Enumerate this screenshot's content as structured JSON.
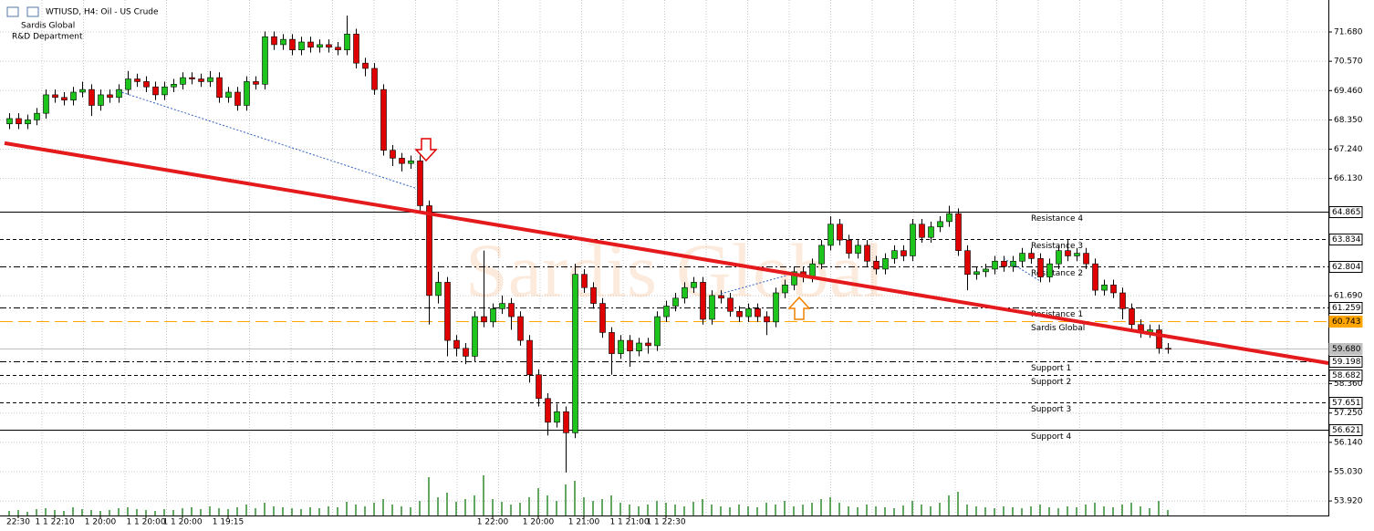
{
  "chart_data": {
    "type": "candlestick",
    "title": "WTIUSD, H4:  Oil - US Crude",
    "subtitle": [
      "Sardis Global",
      "R&D Department"
    ],
    "watermark": "Sardis Global",
    "ylim": [
      53.37,
      72.89
    ],
    "yticks": [
      {
        "value": 71.68,
        "label": "71.680"
      },
      {
        "value": 70.57,
        "label": "70.570"
      },
      {
        "value": 69.46,
        "label": "69.460"
      },
      {
        "value": 68.35,
        "label": "68.350"
      },
      {
        "value": 67.24,
        "label": "67.240"
      },
      {
        "value": 66.13,
        "label": "66.130"
      },
      {
        "value": 61.69,
        "label": "61.690"
      },
      {
        "value": 58.36,
        "label": "58.360"
      },
      {
        "value": 57.25,
        "label": "57.250"
      },
      {
        "value": 56.14,
        "label": "56.140"
      },
      {
        "value": 55.03,
        "label": "55.030"
      },
      {
        "value": 53.92,
        "label": "53.920"
      }
    ],
    "grid": true,
    "up_color": "#1cc41c",
    "down_color": "#e00000",
    "volume_color": "#2e8b2e",
    "vlim": [
      0,
      60
    ],
    "categories": [
      null,
      "22:30",
      null,
      null,
      null,
      "1 1 22:10",
      null,
      null,
      null,
      null,
      "1 20:00",
      null,
      null,
      null,
      null,
      "1 1 20:00",
      null,
      null,
      null,
      "1 1 20:00",
      null,
      null,
      null,
      null,
      "1 19:15",
      null,
      null,
      null,
      null,
      null,
      null,
      null,
      null,
      null,
      null,
      null,
      null,
      null,
      null,
      null,
      null,
      null,
      null,
      null,
      null,
      null,
      null,
      null,
      null,
      null,
      null,
      null,
      null,
      "1 22:00",
      null,
      null,
      null,
      null,
      "1 20:00",
      null,
      null,
      null,
      null,
      "1 21:00",
      null,
      null,
      null,
      null,
      "1 1 21:00",
      null,
      null,
      null,
      "1 1 22:30",
      null,
      null,
      null,
      null,
      null,
      null,
      null,
      null,
      null,
      null,
      null,
      null,
      null,
      null,
      null,
      null,
      null,
      null,
      null,
      null,
      null,
      null,
      null,
      null,
      null,
      null,
      null,
      null,
      null,
      null,
      null,
      null,
      null,
      null,
      null,
      null,
      null,
      null,
      null,
      null,
      null,
      null,
      null,
      null,
      null,
      null,
      null,
      null,
      null,
      null,
      null,
      null,
      null,
      null,
      null
    ],
    "open": [
      68.2,
      68.4,
      68.2,
      68.35,
      68.6,
      69.3,
      69.2,
      69.1,
      69.4,
      69.5,
      68.9,
      69.3,
      69.2,
      69.5,
      69.9,
      69.8,
      69.6,
      69.3,
      69.6,
      69.7,
      69.95,
      69.9,
      69.8,
      69.95,
      69.2,
      69.4,
      68.9,
      69.8,
      69.7,
      71.5,
      71.2,
      71.4,
      71.0,
      71.3,
      71.1,
      71.2,
      71.1,
      71.0,
      71.6,
      70.5,
      70.3,
      69.5,
      67.2,
      66.9,
      66.7,
      66.8,
      65.1,
      61.7,
      62.2,
      60.0,
      59.7,
      59.4,
      60.9,
      60.7,
      61.2,
      61.4,
      60.9,
      60.0,
      58.7,
      57.8,
      56.9,
      57.3,
      56.5,
      62.5,
      62.0,
      61.4,
      60.3,
      59.5,
      60.0,
      59.6,
      59.9,
      59.8,
      60.9,
      61.3,
      61.6,
      62.0,
      62.2,
      60.8,
      61.7,
      61.6,
      61.1,
      60.9,
      61.2,
      60.9,
      60.7,
      61.8,
      62.1,
      62.6,
      62.4,
      62.9,
      63.6,
      64.4,
      63.8,
      63.3,
      63.6,
      63.0,
      62.7,
      63.1,
      63.4,
      63.2,
      64.4,
      63.9,
      64.3,
      64.5,
      64.8,
      63.4,
      62.5,
      62.6,
      62.7,
      63.0,
      62.8,
      63.0,
      63.3,
      63.1,
      62.4,
      62.9,
      63.4,
      63.2,
      63.3,
      62.9,
      61.9,
      62.1,
      61.8,
      61.2,
      60.6,
      60.3,
      60.4,
      59.7
    ],
    "high": [
      68.6,
      68.6,
      68.55,
      68.8,
      69.5,
      69.5,
      69.4,
      69.6,
      69.8,
      69.7,
      69.5,
      69.5,
      69.7,
      70.2,
      70.1,
      70.0,
      69.8,
      69.8,
      69.9,
      70.15,
      70.15,
      70.1,
      70.2,
      70.15,
      69.6,
      69.6,
      70.0,
      70.0,
      71.7,
      71.7,
      71.6,
      71.6,
      71.5,
      71.5,
      71.4,
      71.4,
      71.3,
      72.3,
      71.8,
      70.7,
      70.5,
      69.7,
      67.4,
      67.1,
      67.0,
      67.0,
      65.3,
      62.6,
      62.4,
      60.2,
      59.9,
      61.1,
      63.4,
      61.4,
      61.7,
      61.6,
      61.1,
      60.2,
      58.9,
      58.0,
      57.6,
      57.5,
      62.9,
      62.7,
      62.2,
      61.6,
      60.5,
      60.2,
      60.2,
      60.1,
      60.1,
      61.1,
      61.5,
      61.8,
      62.2,
      62.4,
      62.4,
      61.9,
      61.9,
      61.8,
      61.3,
      61.4,
      61.4,
      61.1,
      62.0,
      62.3,
      62.8,
      62.8,
      63.1,
      63.8,
      64.7,
      64.6,
      64.0,
      63.8,
      63.8,
      63.2,
      63.3,
      63.6,
      63.6,
      64.6,
      64.6,
      64.5,
      64.7,
      65.1,
      65.0,
      63.6,
      62.8,
      62.9,
      63.2,
      63.2,
      63.2,
      63.5,
      63.5,
      63.3,
      63.1,
      63.6,
      63.8,
      63.5,
      63.5,
      63.1,
      62.3,
      62.3,
      62.0,
      61.4,
      60.8,
      60.6,
      60.6,
      59.9
    ],
    "low": [
      68.0,
      68.0,
      68.0,
      68.15,
      68.4,
      69.0,
      68.9,
      68.9,
      69.2,
      68.5,
      68.7,
      69.0,
      69.0,
      69.3,
      69.6,
      69.4,
      69.1,
      69.1,
      69.4,
      69.5,
      69.7,
      69.6,
      69.6,
      69.0,
      69.0,
      68.7,
      68.7,
      69.5,
      69.5,
      71.0,
      71.0,
      70.8,
      70.8,
      70.9,
      70.9,
      70.9,
      70.8,
      70.8,
      70.3,
      70.0,
      69.3,
      67.0,
      66.6,
      66.4,
      66.5,
      64.9,
      60.6,
      61.4,
      59.4,
      59.4,
      59.1,
      59.2,
      60.5,
      60.5,
      61.0,
      60.4,
      59.8,
      58.4,
      57.5,
      56.4,
      56.7,
      55.0,
      56.3,
      61.8,
      61.2,
      60.1,
      58.7,
      59.3,
      59.0,
      59.4,
      59.5,
      59.6,
      60.7,
      61.1,
      61.4,
      61.8,
      60.6,
      60.6,
      61.4,
      60.9,
      60.7,
      60.7,
      60.7,
      60.2,
      60.5,
      61.6,
      61.9,
      62.2,
      62.2,
      62.7,
      63.4,
      63.6,
      63.1,
      63.1,
      62.8,
      62.5,
      62.5,
      62.9,
      63.0,
      63.0,
      63.7,
      63.7,
      64.1,
      64.3,
      63.2,
      61.9,
      62.3,
      62.4,
      62.5,
      62.6,
      62.6,
      62.8,
      62.9,
      62.2,
      62.2,
      62.7,
      63.0,
      63.0,
      62.7,
      61.7,
      61.7,
      61.6,
      60.8,
      60.4,
      60.1,
      60.1,
      59.5,
      59.5
    ],
    "close": [
      68.4,
      68.2,
      68.35,
      68.6,
      69.3,
      69.2,
      69.1,
      69.4,
      69.5,
      68.9,
      69.3,
      69.2,
      69.5,
      69.9,
      69.8,
      69.6,
      69.3,
      69.6,
      69.7,
      69.95,
      69.9,
      69.8,
      69.95,
      69.2,
      69.4,
      68.9,
      69.8,
      69.7,
      71.5,
      71.2,
      71.4,
      71.0,
      71.3,
      71.1,
      71.2,
      71.1,
      71.0,
      71.6,
      70.5,
      70.3,
      69.5,
      67.2,
      66.9,
      66.7,
      66.8,
      65.1,
      61.7,
      62.2,
      60.0,
      59.7,
      59.4,
      60.9,
      60.7,
      61.2,
      61.4,
      60.9,
      60.0,
      58.7,
      57.8,
      56.9,
      57.3,
      56.5,
      62.5,
      62.0,
      61.4,
      60.3,
      59.5,
      60.0,
      59.6,
      59.9,
      59.8,
      60.9,
      61.3,
      61.6,
      62.0,
      62.2,
      60.8,
      61.7,
      61.6,
      61.1,
      60.9,
      61.2,
      60.9,
      60.7,
      61.8,
      62.1,
      62.6,
      62.4,
      62.9,
      63.6,
      64.4,
      63.8,
      63.3,
      63.6,
      63.0,
      62.7,
      63.1,
      63.4,
      63.2,
      64.4,
      63.9,
      64.3,
      64.5,
      64.8,
      63.4,
      62.5,
      62.6,
      62.7,
      63.0,
      62.8,
      63.0,
      63.3,
      63.1,
      62.4,
      62.9,
      63.4,
      63.2,
      63.3,
      62.9,
      61.9,
      62.1,
      61.8,
      61.2,
      60.6,
      60.3,
      60.4,
      59.7,
      59.68
    ],
    "volume": [
      5,
      6,
      4,
      7,
      8,
      6,
      5,
      9,
      7,
      6,
      5,
      6,
      8,
      9,
      7,
      6,
      5,
      7,
      6,
      8,
      9,
      7,
      10,
      8,
      7,
      9,
      12,
      8,
      14,
      10,
      9,
      8,
      7,
      9,
      8,
      10,
      9,
      15,
      12,
      10,
      14,
      18,
      12,
      10,
      9,
      16,
      42,
      20,
      25,
      15,
      18,
      22,
      44,
      18,
      15,
      12,
      14,
      20,
      30,
      22,
      16,
      34,
      38,
      20,
      16,
      18,
      22,
      14,
      12,
      10,
      12,
      16,
      14,
      12,
      10,
      15,
      18,
      12,
      10,
      9,
      12,
      10,
      9,
      14,
      12,
      16,
      10,
      12,
      14,
      18,
      20,
      14,
      10,
      9,
      12,
      10,
      9,
      8,
      11,
      16,
      12,
      10,
      14,
      22,
      26,
      12,
      10,
      9,
      8,
      10,
      9,
      8,
      10,
      12,
      9,
      8,
      10,
      9,
      12,
      14,
      10,
      9,
      12,
      14,
      10,
      8,
      16,
      6
    ],
    "levels": [
      {
        "name": "Resistance 4",
        "value": 64.865,
        "style": "solid",
        "color": "#000000"
      },
      {
        "name": "Resistance 3",
        "value": 63.834,
        "style": "dash",
        "color": "#000000"
      },
      {
        "name": "Resistance 2",
        "value": 62.804,
        "style": "dashdot",
        "color": "#000000"
      },
      {
        "name": "Resistance 1",
        "value": 61.259,
        "style": "dashdot",
        "color": "#000000"
      },
      {
        "name": "Sardis Global",
        "value": 60.743,
        "style": "longdash",
        "color": "#ffa500"
      },
      {
        "value": 59.68,
        "label": "59.680",
        "style": "solid",
        "color": "#c0c0c0"
      },
      {
        "name": "Support 1",
        "value": 59.198,
        "style": "dashdot",
        "color": "#000000"
      },
      {
        "name": "Support 2",
        "value": 58.682,
        "style": "dash",
        "color": "#000000"
      },
      {
        "name": "Support 3",
        "value": 57.651,
        "style": "dash",
        "color": "#000000"
      },
      {
        "name": "Support 4",
        "value": 56.621,
        "style": "solid",
        "color": "#000000"
      }
    ],
    "trendline": {
      "x": [
        -0.5,
        144.6
      ],
      "y": [
        67.47,
        59.14
      ],
      "color": "#e41a1c"
    }
  }
}
